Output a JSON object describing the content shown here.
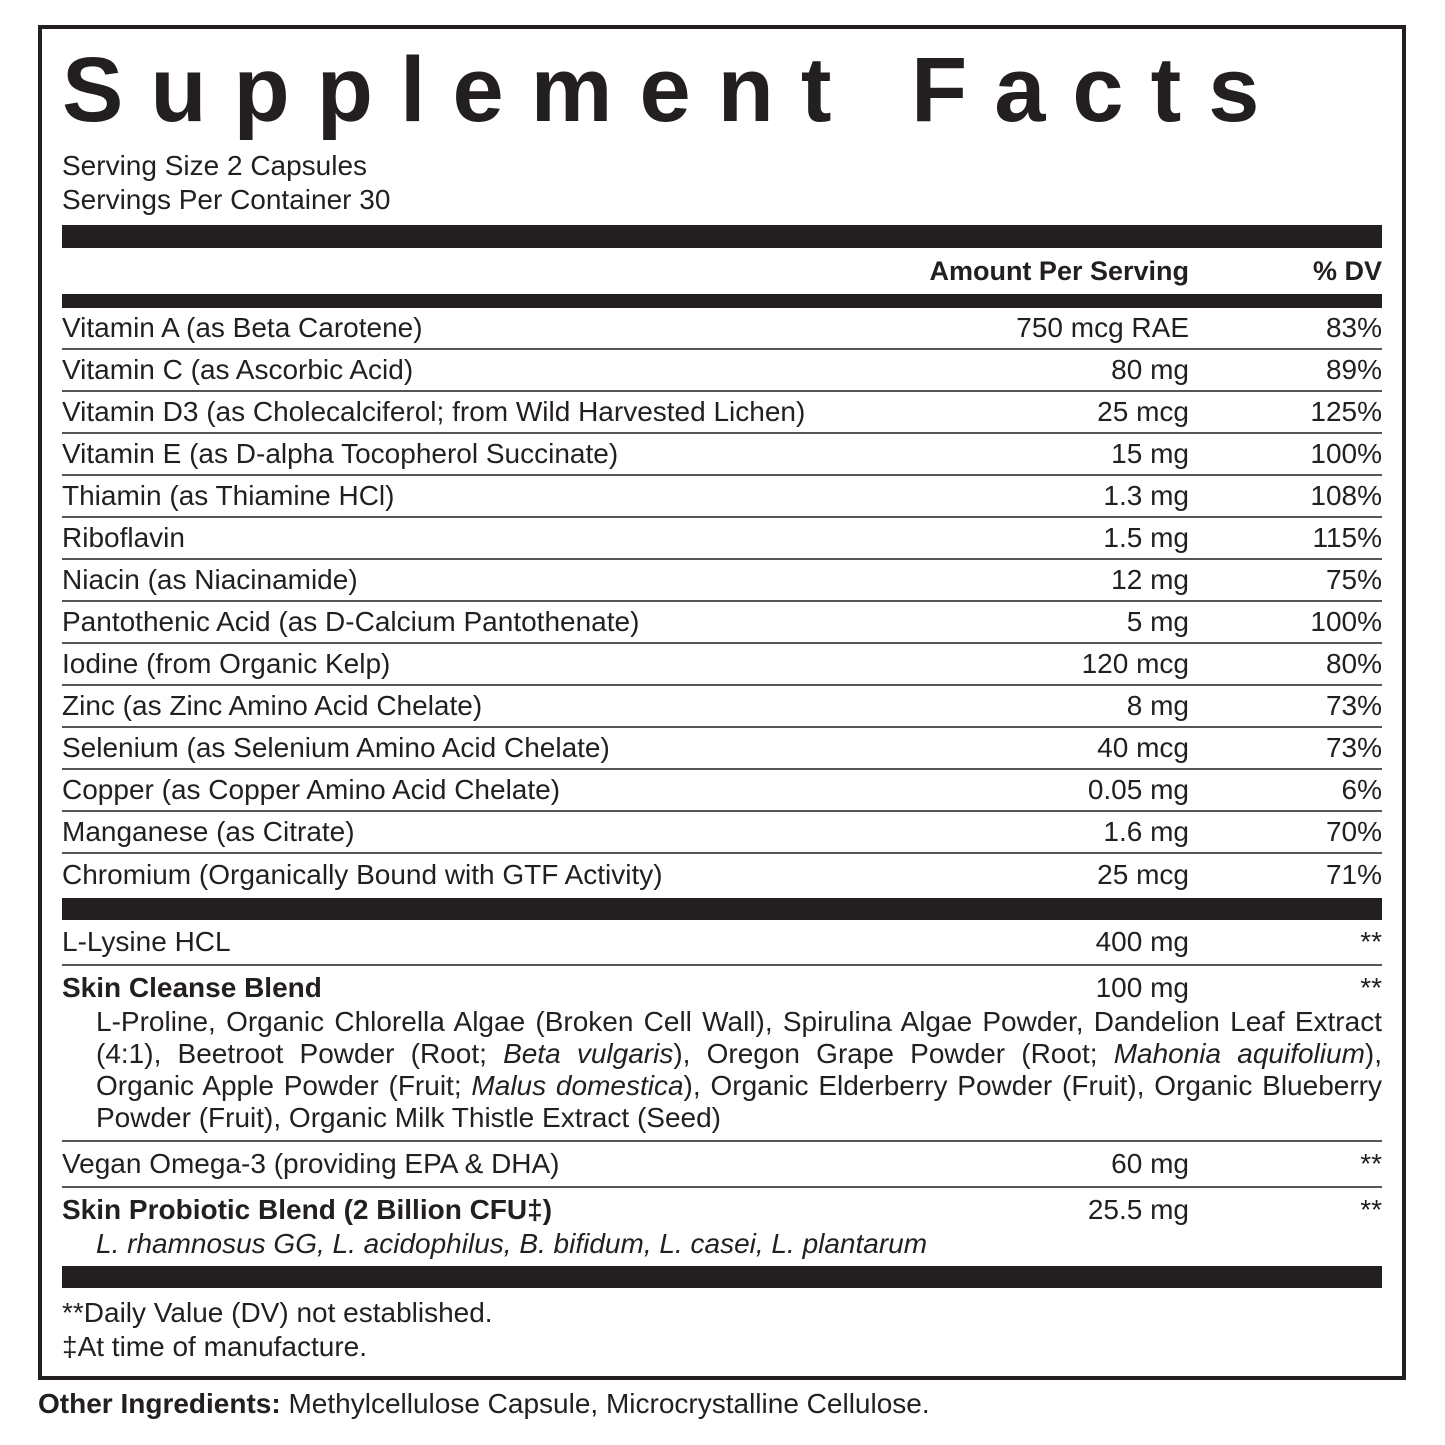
{
  "title": "Supplement Facts",
  "serving_size": "Serving Size 2 Capsules",
  "servings_per_container": "Servings Per Container 30",
  "header": {
    "amount": "Amount Per Serving",
    "dv": "% DV"
  },
  "vitamins": [
    {
      "name": "Vitamin A (as Beta Carotene)",
      "amount": "750 mcg RAE",
      "dv": "83%"
    },
    {
      "name": "Vitamin C (as Ascorbic Acid)",
      "amount": "80 mg",
      "dv": "89%"
    },
    {
      "name": "Vitamin D3 (as Cholecalciferol; from Wild Harvested Lichen)",
      "amount": "25 mcg",
      "dv": "125%"
    },
    {
      "name": "Vitamin E (as D-alpha Tocopherol Succinate)",
      "amount": "15 mg",
      "dv": "100%"
    },
    {
      "name": "Thiamin (as Thiamine HCl)",
      "amount": "1.3 mg",
      "dv": "108%"
    },
    {
      "name": "Riboflavin",
      "amount": "1.5 mg",
      "dv": "115%"
    },
    {
      "name": "Niacin (as Niacinamide)",
      "amount": "12 mg",
      "dv": "75%"
    },
    {
      "name": "Pantothenic Acid (as D-Calcium Pantothenate)",
      "amount": "5 mg",
      "dv": "100%"
    },
    {
      "name": "Iodine (from Organic Kelp)",
      "amount": "120 mcg",
      "dv": "80%"
    },
    {
      "name": "Zinc (as Zinc Amino Acid Chelate)",
      "amount": "8 mg",
      "dv": "73%"
    },
    {
      "name": "Selenium (as Selenium Amino Acid Chelate)",
      "amount": "40 mcg",
      "dv": "73%"
    },
    {
      "name": "Copper (as Copper Amino Acid Chelate)",
      "amount": "0.05 mg",
      "dv": "6%"
    },
    {
      "name": "Manganese (as Citrate)",
      "amount": "1.6 mg",
      "dv": "70%"
    },
    {
      "name": "Chromium (Organically Bound with GTF Activity)",
      "amount": "25 mcg",
      "dv": "71%"
    }
  ],
  "others": [
    {
      "name": "L-Lysine HCL",
      "amount": "400 mg",
      "dv": "**"
    },
    {
      "name": "Skin Cleanse Blend",
      "amount": "100 mg",
      "dv": "**",
      "description": [
        {
          "text": "L-Proline, Organic Chlorella Algae (Broken Cell Wall), Spirulina Algae Powder, Dandelion Leaf Extract (4:1), Beetroot Powder (Root; "
        },
        {
          "text": "Beta vulgaris",
          "italic": true
        },
        {
          "text": "), Oregon Grape Powder (Root; "
        },
        {
          "text": "Mahonia aquifolium",
          "italic": true
        },
        {
          "text": "), Organic Apple Powder (Fruit; "
        },
        {
          "text": "Malus domestica",
          "italic": true
        },
        {
          "text": "), Organic Elderberry Powder (Fruit), Organic Blueberry  Powder (Fruit), Organic Milk Thistle Extract (Seed)"
        }
      ]
    },
    {
      "name": "Vegan Omega-3 (providing EPA & DHA)",
      "amount": "60 mg",
      "dv": "**"
    },
    {
      "name": "Skin Probiotic Blend (2 Billion CFU‡)",
      "amount": "25.5 mg",
      "dv": "**",
      "description": [
        {
          "text": "L. rhamnosus GG, L. acidophilus, B. bifidum, L. casei, L. plantarum",
          "italic": true
        }
      ]
    }
  ],
  "footnotes": [
    "**Daily Value (DV) not established.",
    "‡At time of manufacture."
  ],
  "other_ingredients": {
    "label": "Other Ingredients:",
    "text": "Methylcellulose Capsule, Microcrystalline Cellulose."
  }
}
